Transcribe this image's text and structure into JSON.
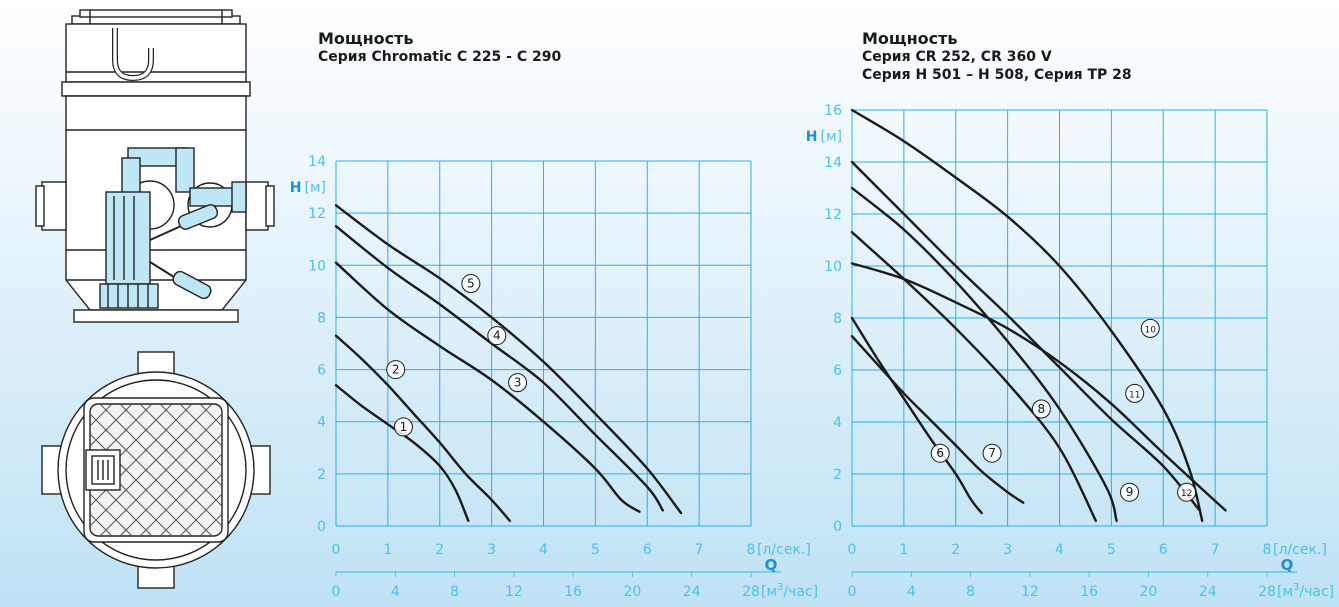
{
  "colors": {
    "grid": "#28b2e2",
    "tick": "#4fc0e8",
    "curve": "#1a1a1a",
    "axis_accent": "#1e8ed6",
    "drawing_line": "#222222",
    "drawing_fill": "#ffffff",
    "pump_fill": "#bfe6f5"
  },
  "illustrations": {
    "side_view": "pump-chamber-side-view",
    "top_view": "pump-chamber-top-view"
  },
  "chart_data": [
    {
      "type": "line",
      "title": "Мощность",
      "subtitle": "Серия Chromatic C 225 - C 290",
      "y_axis": {
        "letter": "H",
        "unit": "[м]",
        "ticks": [
          "0",
          "2",
          "4",
          "6",
          "8",
          "10",
          "12",
          "14"
        ],
        "range": [
          0,
          14
        ],
        "grid_step": 2
      },
      "x_axis": {
        "letter": "Q",
        "ticks": [
          "0",
          "1",
          "2",
          "3",
          "4",
          "5",
          "6",
          "7",
          "8"
        ],
        "unit": "[л/сек.]",
        "range": [
          0,
          8
        ],
        "grid_step": 1
      },
      "x2_axis": {
        "ticks": [
          "0",
          "4",
          "8",
          "12",
          "16",
          "20",
          "24",
          "28"
        ],
        "unit": "[м³/час]",
        "unit_base": "[м",
        "unit_sup": "3",
        "unit_tail": "/час]",
        "range": [
          0,
          28
        ]
      },
      "grid": true,
      "series": [
        {
          "name": "1",
          "label": {
            "x": 1.3,
            "y": 3.8
          },
          "points": [
            [
              0,
              5.4
            ],
            [
              0.5,
              4.6
            ],
            [
              1.0,
              3.9
            ],
            [
              1.5,
              3.2
            ],
            [
              2.0,
              2.3
            ],
            [
              2.3,
              1.4
            ],
            [
              2.55,
              0.2
            ]
          ]
        },
        {
          "name": "2",
          "label": {
            "x": 1.15,
            "y": 6.0
          },
          "points": [
            [
              0,
              7.3
            ],
            [
              0.5,
              6.4
            ],
            [
              1.0,
              5.4
            ],
            [
              1.5,
              4.3
            ],
            [
              2.0,
              3.2
            ],
            [
              2.5,
              2.0
            ],
            [
              3.0,
              1.0
            ],
            [
              3.35,
              0.2
            ]
          ]
        },
        {
          "name": "3",
          "label": {
            "x": 3.5,
            "y": 5.5
          },
          "points": [
            [
              0,
              10.1
            ],
            [
              1.0,
              8.3
            ],
            [
              2.0,
              6.9
            ],
            [
              3.0,
              5.6
            ],
            [
              4.0,
              4.0
            ],
            [
              5.0,
              2.2
            ],
            [
              5.5,
              1.0
            ],
            [
              5.85,
              0.55
            ]
          ]
        },
        {
          "name": "4",
          "label": {
            "x": 3.1,
            "y": 7.3
          },
          "points": [
            [
              0,
              11.5
            ],
            [
              1.0,
              9.9
            ],
            [
              2.0,
              8.5
            ],
            [
              3.0,
              7.0
            ],
            [
              4.0,
              5.5
            ],
            [
              5.0,
              3.5
            ],
            [
              6.0,
              1.5
            ],
            [
              6.3,
              0.6
            ]
          ]
        },
        {
          "name": "5",
          "label": {
            "x": 2.6,
            "y": 9.3
          },
          "points": [
            [
              0,
              12.3
            ],
            [
              1.0,
              10.8
            ],
            [
              2.0,
              9.5
            ],
            [
              3.0,
              8.0
            ],
            [
              4.0,
              6.3
            ],
            [
              5.0,
              4.3
            ],
            [
              6.0,
              2.2
            ],
            [
              6.65,
              0.5
            ]
          ]
        }
      ]
    },
    {
      "type": "line",
      "title": "Мощность",
      "subtitle": "Серия CR 252, CR 360 V",
      "subtitle2": "Серия H 501 – H 508, Серия TP 28",
      "y_axis": {
        "letter": "H",
        "unit": "[м]",
        "ticks": [
          "0",
          "2",
          "4",
          "6",
          "8",
          "10",
          "12",
          "14",
          "16"
        ],
        "range": [
          0,
          16
        ],
        "grid_step": 2
      },
      "x_axis": {
        "letter": "Q",
        "ticks": [
          "0",
          "1",
          "2",
          "3",
          "4",
          "5",
          "6",
          "7",
          "8"
        ],
        "unit": "[л/сек.]",
        "range": [
          0,
          8
        ],
        "grid_step": 1
      },
      "x2_axis": {
        "ticks": [
          "0",
          "4",
          "8",
          "12",
          "16",
          "20",
          "24",
          "28"
        ],
        "unit": "[м³/час]",
        "unit_base": "[м",
        "unit_sup": "3",
        "unit_tail": "/час]",
        "range": [
          0,
          28
        ]
      },
      "grid": true,
      "series": [
        {
          "name": "6",
          "label": {
            "x": 1.7,
            "y": 2.8
          },
          "points": [
            [
              0,
              8.0
            ],
            [
              0.5,
              6.4
            ],
            [
              1.0,
              4.9
            ],
            [
              1.5,
              3.4
            ],
            [
              2.0,
              2.0
            ],
            [
              2.3,
              1.0
            ],
            [
              2.5,
              0.5
            ]
          ]
        },
        {
          "name": "7",
          "label": {
            "x": 2.7,
            "y": 2.8
          },
          "points": [
            [
              0,
              7.3
            ],
            [
              0.5,
              6.2
            ],
            [
              1.0,
              5.1
            ],
            [
              1.5,
              4.1
            ],
            [
              2.0,
              3.1
            ],
            [
              2.5,
              2.1
            ],
            [
              3.0,
              1.3
            ],
            [
              3.3,
              0.9
            ]
          ]
        },
        {
          "name": "8",
          "label": {
            "x": 3.65,
            "y": 4.5
          },
          "points": [
            [
              0,
              11.3
            ],
            [
              1.0,
              9.5
            ],
            [
              2.0,
              7.6
            ],
            [
              3.0,
              5.5
            ],
            [
              4.0,
              3.0
            ],
            [
              4.7,
              0.2
            ]
          ]
        },
        {
          "name": "9",
          "label": {
            "x": 5.35,
            "y": 1.3
          },
          "points": [
            [
              0,
              13.0
            ],
            [
              1.0,
              11.4
            ],
            [
              2.0,
              9.4
            ],
            [
              3.0,
              7.1
            ],
            [
              4.0,
              4.5
            ],
            [
              4.9,
              1.5
            ],
            [
              5.1,
              0.2
            ]
          ]
        },
        {
          "name": "10",
          "label": {
            "x": 5.75,
            "y": 7.6
          },
          "points": [
            [
              0,
              16.0
            ],
            [
              1.0,
              14.8
            ],
            [
              2.0,
              13.4
            ],
            [
              3.0,
              11.9
            ],
            [
              4.0,
              10.0
            ],
            [
              5.0,
              7.5
            ],
            [
              6.0,
              4.5
            ],
            [
              6.5,
              2.2
            ],
            [
              6.75,
              0.2
            ]
          ]
        },
        {
          "name": "11",
          "label": {
            "x": 5.45,
            "y": 5.1
          },
          "points": [
            [
              0,
              10.1
            ],
            [
              1.0,
              9.5
            ],
            [
              2.0,
              8.6
            ],
            [
              3.0,
              7.6
            ],
            [
              4.0,
              6.3
            ],
            [
              5.0,
              4.7
            ],
            [
              6.0,
              2.8
            ],
            [
              7.2,
              0.6
            ]
          ]
        },
        {
          "name": "12",
          "label": {
            "x": 6.45,
            "y": 1.3
          },
          "points": [
            [
              0,
              14.0
            ],
            [
              1.0,
              12.0
            ],
            [
              2.0,
              10.0
            ],
            [
              3.0,
              8.1
            ],
            [
              4.0,
              6.1
            ],
            [
              5.0,
              4.1
            ],
            [
              6.0,
              2.3
            ],
            [
              6.7,
              0.6
            ]
          ]
        }
      ]
    }
  ]
}
